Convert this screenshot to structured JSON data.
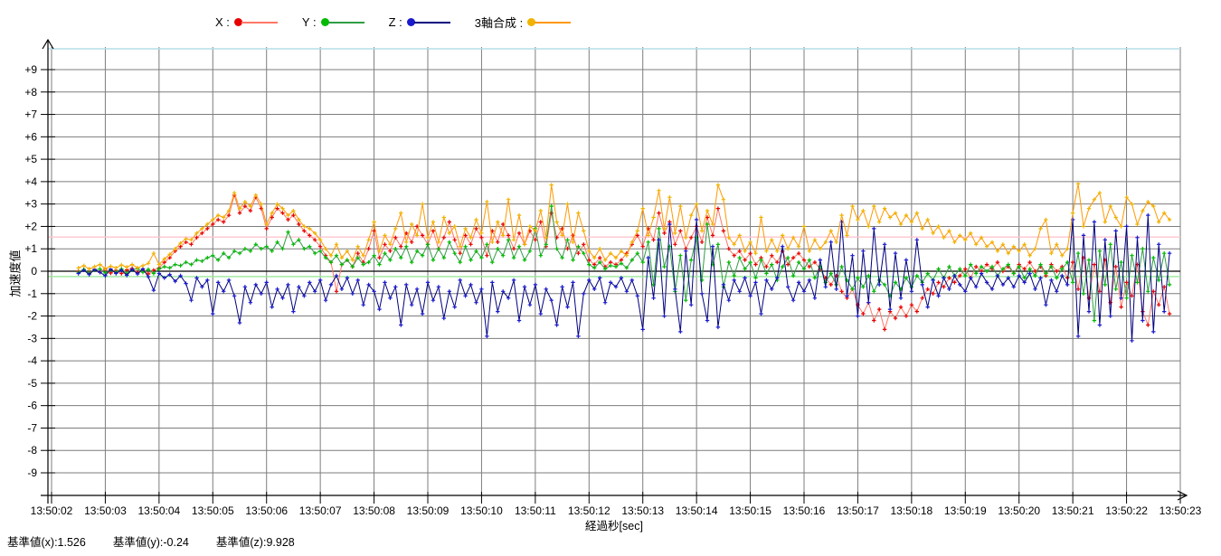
{
  "chart_data": {
    "type": "line",
    "title": "",
    "xlabel": "経過秒[sec]",
    "ylabel": "加速度値",
    "legend_position": "top",
    "grid": true,
    "ylim": [
      -10,
      10
    ],
    "xlim_labels": [
      "13:50:02",
      "13:50:23"
    ],
    "x_ticks": [
      "13:50:02",
      "13:50:03",
      "13:50:04",
      "13:50:05",
      "13:50:06",
      "13:50:07",
      "13:50:08",
      "13:50:09",
      "13:50:10",
      "13:50:11",
      "13:50:12",
      "13:50:13",
      "13:50:14",
      "13:50:15",
      "13:50:16",
      "13:50:17",
      "13:50:18",
      "13:50:19",
      "13:50:20",
      "13:50:21",
      "13:50:22",
      "13:50:23"
    ],
    "x_tick_seconds": [
      2,
      3,
      4,
      5,
      6,
      7,
      8,
      9,
      10,
      11,
      12,
      13,
      14,
      15,
      16,
      17,
      18,
      19,
      20,
      21,
      22,
      23
    ],
    "y_ticks": {
      "labels": [
        "+9",
        "+8",
        "+7",
        "+6",
        "+5",
        "+4",
        "+3",
        "+2",
        "+1",
        "0",
        "-1",
        "-2",
        "-3",
        "-4",
        "-5",
        "-6",
        "-7",
        "-8",
        "-9"
      ],
      "values": [
        9,
        8,
        7,
        6,
        5,
        4,
        3,
        2,
        1,
        0,
        -1,
        -2,
        -3,
        -4,
        -5,
        -6,
        -7,
        -8,
        -9
      ]
    },
    "baselines": {
      "x": 1.526,
      "y": -0.24,
      "z": 9.928
    },
    "baseline_colors": {
      "x": "#ffc4cf",
      "y": "#9ce89c",
      "z": "#b6dee9"
    },
    "sample": {
      "t0": 2.5,
      "dt": 0.1,
      "time_origin": "13:50:00"
    },
    "series": [
      {
        "name": "X",
        "label": "X :",
        "marker_color": "#e60000",
        "line_color": "#ff7766",
        "values": [
          0,
          0.05,
          -0.1,
          0.08,
          -0.05,
          0.1,
          -0.08,
          0.04,
          -0.1,
          0.06,
          0.12,
          -0.06,
          0.1,
          -0.12,
          0.05,
          0.15,
          0.4,
          0.6,
          0.9,
          1.1,
          1.3,
          1.2,
          1.5,
          1.7,
          1.9,
          2.1,
          2.3,
          2.2,
          2.5,
          3.4,
          2.6,
          2.9,
          2.7,
          3.3,
          2.8,
          1.9,
          2.4,
          2.8,
          2.6,
          2.3,
          2.5,
          2.1,
          1.8,
          1.6,
          1.4,
          1.1,
          0.7,
          0.4,
          -0.9,
          0.3,
          0.5,
          0.2,
          0.8,
          0.4,
          1.0,
          1.8,
          0.6,
          1.2,
          0.9,
          1.5,
          1.1,
          1.7,
          1.3,
          2.0,
          1.6,
          1.2,
          1.8,
          1.0,
          1.5,
          2.2,
          1.4,
          0.8,
          1.6,
          1.2,
          1.9,
          1.5,
          0.7,
          1.8,
          1.3,
          2.1,
          1.6,
          1.0,
          1.7,
          1.2,
          1.8,
          1.4,
          2.2,
          1.1,
          2.6,
          1.5,
          1.9,
          1.0,
          1.6,
          0.8,
          1.2,
          0.5,
          0.3,
          0.6,
          0.2,
          0.4,
          0.3,
          0.5,
          0.8,
          1.2,
          1.6,
          1.1,
          1.9,
          1.4,
          2.6,
          1.7,
          2.2,
          1.2,
          1.8,
          1.0,
          1.5,
          2.0,
          1.3,
          2.4,
          1.6,
          2.8,
          1.8,
          1.0,
          0.7,
          0.9,
          0.5,
          0.8,
          0.3,
          0.6,
          0.2,
          0.7,
          0.4,
          0.9,
          0.3,
          0.6,
          0.8,
          0.5,
          0.2,
          0.4,
          0.1,
          -0.3,
          -0.6,
          -0.2,
          -0.9,
          -1.2,
          -0.8,
          -1.5,
          -1.9,
          -1.4,
          -2.2,
          -1.7,
          -2.6,
          -1.8,
          -2.1,
          -1.6,
          -2.0,
          -1.5,
          -1.8,
          -1.2,
          -0.8,
          -1.0,
          -0.5,
          -0.7,
          -0.3,
          -0.5,
          -0.2,
          0.1,
          -0.3,
          0.2,
          0,
          0.3,
          0.1,
          0.4,
          0,
          0.2,
          -0.1,
          0.3,
          0.1,
          0.4,
          0,
          0.2,
          -0.2,
          0.3,
          0,
          0.2,
          -0.3,
          0.4,
          -0.8,
          0.6,
          -1.2,
          0.3,
          -0.9,
          0.5,
          -1.4,
          0.2,
          -1.6,
          -0.5,
          -1.1,
          0.3,
          -1.8,
          -2.4,
          -0.9,
          -1.5,
          -0.7,
          -1.9
        ]
      },
      {
        "name": "Y",
        "label": "Y :",
        "marker_color": "#00bb00",
        "line_color": "#2f9e44",
        "values": [
          -0.05,
          0.08,
          -0.1,
          0.05,
          0.1,
          -0.08,
          0.06,
          -0.04,
          0.1,
          -0.1,
          0.05,
          0.12,
          -0.05,
          0.08,
          -0.1,
          0.1,
          0.2,
          0.15,
          0.3,
          0.25,
          0.4,
          0.3,
          0.5,
          0.45,
          0.6,
          0.7,
          0.5,
          0.8,
          0.6,
          0.9,
          0.8,
          1.0,
          0.9,
          1.2,
          1.0,
          1.1,
          0.9,
          1.3,
          1.0,
          1.75,
          1.2,
          1.4,
          1.0,
          1.1,
          0.8,
          0.9,
          0.6,
          0.4,
          0.7,
          0.3,
          0.5,
          0.2,
          0.6,
          0.3,
          0.4,
          0.7,
          0.3,
          0.8,
          0.5,
          1.0,
          0.6,
          1.1,
          0.4,
          0.9,
          0.7,
          1.2,
          0.5,
          1.0,
          0.6,
          1.3,
          0.8,
          0.4,
          1.1,
          0.5,
          0.9,
          0.6,
          1.2,
          0.4,
          1.0,
          0.7,
          1.4,
          0.6,
          1.1,
          0.5,
          0.9,
          1.9,
          0.7,
          1.2,
          2.9,
          1.0,
          0.6,
          1.4,
          0.5,
          1.1,
          0.8,
          0.3,
          0.15,
          0.4,
          0.1,
          0.25,
          0.2,
          0.35,
          0.15,
          0.5,
          0.8,
          0.4,
          1.3,
          -0.6,
          1.9,
          0.2,
          1.1,
          -0.9,
          0.7,
          -1.3,
          0.5,
          1.5,
          -0.4,
          2.1,
          0.3,
          1.2,
          -0.7,
          0.4,
          -0.2,
          0.6,
          0.1,
          0.4,
          -0.3,
          0.5,
          -0.1,
          0.3,
          -0.4,
          0.2,
          0.6,
          -0.2,
          0.4,
          0.1,
          0.5,
          -0.3,
          0.2,
          -0.5,
          -0.1,
          -0.6,
          0.2,
          -0.4,
          -0.8,
          -0.3,
          -0.7,
          -0.2,
          -0.9,
          -0.4,
          -0.6,
          -1.1,
          -0.5,
          -0.8,
          -0.3,
          -0.7,
          -0.2,
          -0.5,
          -0.1,
          -0.4,
          0.1,
          -0.3,
          0.2,
          -0.2,
          0.1,
          -0.2,
          0.3,
          -0.1,
          0.2,
          0,
          0.2,
          -0.2,
          0.1,
          0.3,
          -0.1,
          0.2,
          -0.3,
          0.1,
          -0.2,
          0.3,
          -0.1,
          0.2,
          -0.3,
          0.1,
          0.4,
          -0.5,
          0.8,
          -1.0,
          0.5,
          -2.2,
          0.9,
          -0.6,
          1.2,
          -0.8,
          0.4,
          -1.2,
          0.7,
          -0.5,
          1.0,
          -0.9,
          0.6,
          -0.4,
          0.8,
          -0.6
        ]
      },
      {
        "name": "Z",
        "label": "Z :",
        "marker_color": "#1a1acd",
        "line_color": "#00007f",
        "values": [
          -0.1,
          0.05,
          -0.15,
          0.08,
          -0.05,
          -0.2,
          0.1,
          -0.1,
          0.05,
          -0.18,
          0.08,
          -0.12,
          0.1,
          -0.25,
          -0.85,
          -0.1,
          -0.3,
          -0.15,
          -0.45,
          -0.2,
          -0.55,
          -1.3,
          -0.3,
          -0.7,
          -0.4,
          -1.9,
          -0.5,
          -0.9,
          -0.4,
          -1.1,
          -2.3,
          -0.7,
          -1.4,
          -0.6,
          -1.0,
          -0.5,
          -1.6,
          -0.8,
          -1.2,
          -0.6,
          -1.8,
          -0.7,
          -1.1,
          -0.5,
          -0.9,
          -0.4,
          -1.3,
          -0.6,
          -0.2,
          -0.8,
          -0.3,
          -1.0,
          -0.4,
          -1.5,
          -0.6,
          -0.9,
          -1.7,
          -0.5,
          -1.2,
          -0.7,
          -2.4,
          -0.6,
          -1.5,
          -0.8,
          -1.9,
          -0.5,
          -1.3,
          -0.7,
          -2.1,
          -0.9,
          -1.6,
          -0.4,
          -1.1,
          -0.6,
          -1.4,
          -0.8,
          -2.9,
          -0.5,
          -1.8,
          -0.9,
          -1.2,
          -0.4,
          -2.2,
          -0.7,
          -1.5,
          -0.6,
          -1.9,
          -0.8,
          -1.3,
          -2.4,
          -0.7,
          -1.6,
          -0.5,
          -2.9,
          -1.0,
          -0.4,
          -0.8,
          -0.3,
          -1.4,
          -0.5,
          -0.7,
          -0.3,
          -0.9,
          -0.4,
          -1.1,
          -2.6,
          0.6,
          -1.2,
          1.4,
          -2.0,
          2.1,
          -0.8,
          -2.7,
          0.9,
          -1.5,
          2.3,
          -1.0,
          -2.2,
          1.1,
          -2.5,
          -0.6,
          -1.3,
          -0.4,
          -0.9,
          -0.3,
          -1.1,
          -0.5,
          -1.9,
          -0.4,
          -0.8,
          -0.3,
          1.1,
          -0.7,
          -1.3,
          -0.5,
          -0.9,
          -0.4,
          -1.2,
          0.5,
          -0.7,
          1.3,
          -0.8,
          2.2,
          -1.1,
          0.7,
          -2.0,
          0.9,
          -1.4,
          1.9,
          -0.6,
          1.2,
          -1.7,
          0.8,
          -1.2,
          0.5,
          -0.9,
          1.4,
          -0.6,
          -1.6,
          -0.4,
          -1.1,
          -0.3,
          -0.8,
          -0.2,
          -0.6,
          -0.9,
          -0.3,
          -0.7,
          -0.1,
          -0.5,
          -0.8,
          -0.2,
          -0.6,
          -0.3,
          -0.7,
          -0.2,
          -0.5,
          -0.1,
          -0.8,
          -0.3,
          -1.5,
          -0.4,
          -0.9,
          -0.2,
          -0.6,
          2.3,
          -2.9,
          1.6,
          -1.8,
          2.2,
          -2.4,
          1.4,
          -2.0,
          1.8,
          -1.2,
          2.0,
          -3.1,
          1.5,
          -2.2,
          2.5,
          -2.7,
          1.2,
          -1.8,
          0.8
        ]
      },
      {
        "name": "composite",
        "label": "3軸合成 :",
        "marker_color": "#f0b400",
        "line_color": "#ff9900",
        "values": [
          0.15,
          0.25,
          0.1,
          0.2,
          0.3,
          0.12,
          0.22,
          0.15,
          0.28,
          0.18,
          0.3,
          0.15,
          0.25,
          0.35,
          0.8,
          0.3,
          0.55,
          0.75,
          1.0,
          1.25,
          1.45,
          1.4,
          1.7,
          1.9,
          2.1,
          2.3,
          2.5,
          2.4,
          2.7,
          3.5,
          2.8,
          3.1,
          2.9,
          3.4,
          3.0,
          2.1,
          2.6,
          3.0,
          2.8,
          2.5,
          2.7,
          2.3,
          2.0,
          1.9,
          1.7,
          1.4,
          1.0,
          0.7,
          1.2,
          0.6,
          0.9,
          0.5,
          1.1,
          0.7,
          1.4,
          2.2,
          0.9,
          1.6,
          1.2,
          1.9,
          2.6,
          1.3,
          2.1,
          1.6,
          3.0,
          1.5,
          2.2,
          1.3,
          2.4,
          1.7,
          2.0,
          1.1,
          1.9,
          1.5,
          2.3,
          1.7,
          3.1,
          1.3,
          2.2,
          1.6,
          3.2,
          1.4,
          2.5,
          1.2,
          2.0,
          1.8,
          2.7,
          1.5,
          3.85,
          2.2,
          1.6,
          3.0,
          1.3,
          2.6,
          1.8,
          0.9,
          0.6,
          1.0,
          0.5,
          0.8,
          0.6,
          0.9,
          0.7,
          1.3,
          1.8,
          2.8,
          1.6,
          2.4,
          3.6,
          1.9,
          3.3,
          1.7,
          2.9,
          1.5,
          2.5,
          3.0,
          1.8,
          2.7,
          2.1,
          3.85,
          3.2,
          1.5,
          1.2,
          1.6,
          0.9,
          1.3,
          0.8,
          2.4,
          0.9,
          1.4,
          0.9,
          1.6,
          1.0,
          1.5,
          1.1,
          2.0,
          0.9,
          1.4,
          1.0,
          1.3,
          1.8,
          1.3,
          2.5,
          1.6,
          2.9,
          2.3,
          2.7,
          2.0,
          2.9,
          2.2,
          2.8,
          2.4,
          2.6,
          2.1,
          2.5,
          2.2,
          2.6,
          1.9,
          2.3,
          1.7,
          2.0,
          1.5,
          1.8,
          1.3,
          1.6,
          1.4,
          1.7,
          1.2,
          1.5,
          1.1,
          1.3,
          0.9,
          1.2,
          0.8,
          1.1,
          0.9,
          1.2,
          0.7,
          1.0,
          1.9,
          2.3,
          0.8,
          1.2,
          0.7,
          1.0,
          2.6,
          3.9,
          2.0,
          2.8,
          3.2,
          3.5,
          2.2,
          2.9,
          2.4,
          2.0,
          3.3,
          3.0,
          2.1,
          2.7,
          3.1,
          2.9,
          2.2,
          2.6,
          2.3
        ]
      }
    ]
  },
  "footer": {
    "baseline_x": "基準値(x):1.526",
    "baseline_y": "基準値(y):-0.24",
    "baseline_z": "基準値(z):9.928"
  },
  "style": {
    "grid_color": "#7d7d7d",
    "axis_color": "#000000"
  }
}
